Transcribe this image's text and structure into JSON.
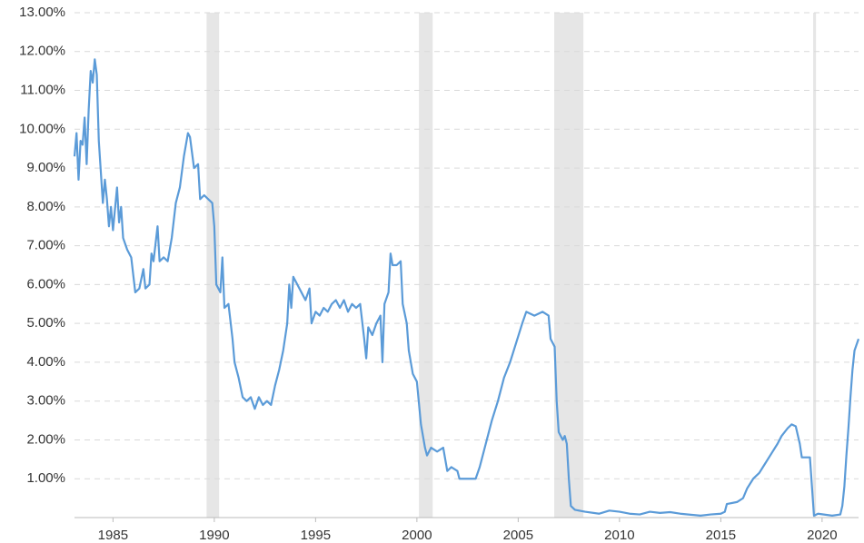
{
  "chart_data": {
    "type": "line",
    "xlim": [
      1983.1,
      2021.8
    ],
    "ylim": [
      0,
      13
    ],
    "xticks": [
      1985,
      1990,
      1995,
      2000,
      2005,
      2010,
      2015,
      2020
    ],
    "yticks": [
      {
        "value": 1,
        "label": "1.00%"
      },
      {
        "value": 2,
        "label": "2.00%"
      },
      {
        "value": 3,
        "label": "3.00%"
      },
      {
        "value": 4,
        "label": "4.00%"
      },
      {
        "value": 5,
        "label": "5.00%"
      },
      {
        "value": 6,
        "label": "6.00%"
      },
      {
        "value": 7,
        "label": "7.00%"
      },
      {
        "value": 8,
        "label": "8.00%"
      },
      {
        "value": 9,
        "label": "9.00%"
      },
      {
        "value": 10,
        "label": "10.00%"
      },
      {
        "value": 11,
        "label": "11.00%"
      },
      {
        "value": 12,
        "label": "12.00%"
      },
      {
        "value": 13,
        "label": "13.00%"
      }
    ],
    "grid": true,
    "recession_color": "#e6e6e6",
    "recessions": [
      [
        1989.62,
        1990.24
      ],
      [
        2000.1,
        2000.78
      ],
      [
        2006.78,
        2008.22
      ],
      [
        2019.56,
        2019.7
      ]
    ],
    "series": [
      {
        "color": "#5b9bd8",
        "x": [
          1983.1,
          1983.2,
          1983.3,
          1983.4,
          1983.5,
          1983.6,
          1983.7,
          1983.8,
          1983.9,
          1984.0,
          1984.1,
          1984.2,
          1984.3,
          1984.5,
          1984.6,
          1984.7,
          1984.8,
          1984.9,
          1985.0,
          1985.2,
          1985.3,
          1985.4,
          1985.5,
          1985.7,
          1985.9,
          1986.1,
          1986.3,
          1986.5,
          1986.6,
          1986.8,
          1986.9,
          1987.0,
          1987.2,
          1987.3,
          1987.5,
          1987.7,
          1987.9,
          1988.1,
          1988.3,
          1988.5,
          1988.7,
          1988.8,
          1989.0,
          1989.2,
          1989.3,
          1989.5,
          1989.7,
          1989.9,
          1990.0,
          1990.1,
          1990.3,
          1990.4,
          1990.5,
          1990.7,
          1990.9,
          1991.0,
          1991.2,
          1991.4,
          1991.6,
          1991.8,
          1992.0,
          1992.2,
          1992.4,
          1992.6,
          1992.8,
          1993.0,
          1993.2,
          1993.4,
          1993.6,
          1993.7,
          1993.8,
          1993.9,
          1994.1,
          1994.3,
          1994.5,
          1994.7,
          1994.8,
          1995.0,
          1995.2,
          1995.4,
          1995.6,
          1995.8,
          1996.0,
          1996.2,
          1996.4,
          1996.6,
          1996.8,
          1997.0,
          1997.2,
          1997.4,
          1997.5,
          1997.6,
          1997.8,
          1998.0,
          1998.2,
          1998.3,
          1998.4,
          1998.6,
          1998.7,
          1998.8,
          1999.0,
          1999.2,
          1999.3,
          1999.5,
          1999.6,
          1999.8,
          2000.0,
          2000.2,
          2000.4,
          2000.5,
          2000.7,
          2001.0,
          2001.3,
          2001.5,
          2001.7,
          2002.0,
          2002.1,
          2002.5,
          2002.9,
          2003.1,
          2003.4,
          2003.7,
          2004.0,
          2004.3,
          2004.6,
          2004.9,
          2005.2,
          2005.4,
          2005.8,
          2006.2,
          2006.5,
          2006.6,
          2006.8,
          2006.9,
          2007.0,
          2007.2,
          2007.3,
          2007.4,
          2007.5,
          2007.6,
          2007.8,
          2008.3,
          2009.0,
          2009.5,
          2010.0,
          2010.5,
          2011.0,
          2011.5,
          2012.0,
          2012.5,
          2013.0,
          2014.0,
          2014.5,
          2015.0,
          2015.2,
          2015.3,
          2015.8,
          2016.1,
          2016.3,
          2016.6,
          2016.9,
          2017.2,
          2017.5,
          2017.8,
          2018.0,
          2018.3,
          2018.5,
          2018.7,
          2018.9,
          2019.0,
          2019.4,
          2019.6,
          2019.8,
          2020.5,
          2020.9,
          2021.0,
          2021.1,
          2021.2,
          2021.3,
          2021.4,
          2021.5,
          2021.6,
          2021.8
        ],
        "values": [
          9.3,
          9.9,
          8.7,
          9.7,
          9.6,
          10.3,
          9.1,
          10.5,
          11.5,
          11.2,
          11.8,
          11.4,
          9.7,
          8.1,
          8.7,
          8.2,
          7.5,
          8.0,
          7.4,
          8.5,
          7.6,
          8.0,
          7.2,
          6.9,
          6.7,
          5.8,
          5.9,
          6.4,
          5.9,
          6.0,
          6.8,
          6.6,
          7.5,
          6.6,
          6.7,
          6.6,
          7.2,
          8.1,
          8.5,
          9.3,
          9.9,
          9.8,
          9.0,
          9.1,
          8.2,
          8.3,
          8.2,
          8.1,
          7.5,
          6.0,
          5.8,
          6.7,
          5.4,
          5.5,
          4.6,
          4.0,
          3.6,
          3.1,
          3.0,
          3.1,
          2.8,
          3.1,
          2.9,
          3.0,
          2.9,
          3.4,
          3.8,
          4.3,
          5.0,
          6.0,
          5.4,
          6.2,
          6.0,
          5.8,
          5.6,
          5.9,
          5.0,
          5.3,
          5.2,
          5.4,
          5.3,
          5.5,
          5.6,
          5.4,
          5.6,
          5.3,
          5.5,
          5.4,
          5.5,
          4.6,
          4.1,
          4.9,
          4.7,
          5.0,
          5.2,
          4.0,
          5.5,
          5.8,
          6.8,
          6.5,
          6.5,
          6.6,
          5.5,
          5.0,
          4.3,
          3.7,
          3.5,
          2.4,
          1.8,
          1.6,
          1.8,
          1.7,
          1.8,
          1.2,
          1.3,
          1.2,
          1.0,
          1.0,
          1.0,
          1.3,
          1.9,
          2.5,
          3.0,
          3.6,
          4.0,
          4.5,
          5.0,
          5.3,
          5.2,
          5.3,
          5.2,
          4.6,
          4.4,
          3.0,
          2.2,
          2.0,
          2.1,
          1.9,
          1.0,
          0.3,
          0.2,
          0.15,
          0.1,
          0.18,
          0.15,
          0.1,
          0.08,
          0.15,
          0.12,
          0.14,
          0.1,
          0.05,
          0.08,
          0.1,
          0.15,
          0.35,
          0.4,
          0.5,
          0.75,
          1.0,
          1.15,
          1.4,
          1.65,
          1.9,
          2.1,
          2.3,
          2.4,
          2.35,
          1.9,
          1.55,
          1.55,
          0.05,
          0.1,
          0.05,
          0.08,
          0.3,
          0.8,
          1.6,
          2.3,
          3.1,
          3.8,
          4.3,
          4.6
        ]
      }
    ]
  }
}
